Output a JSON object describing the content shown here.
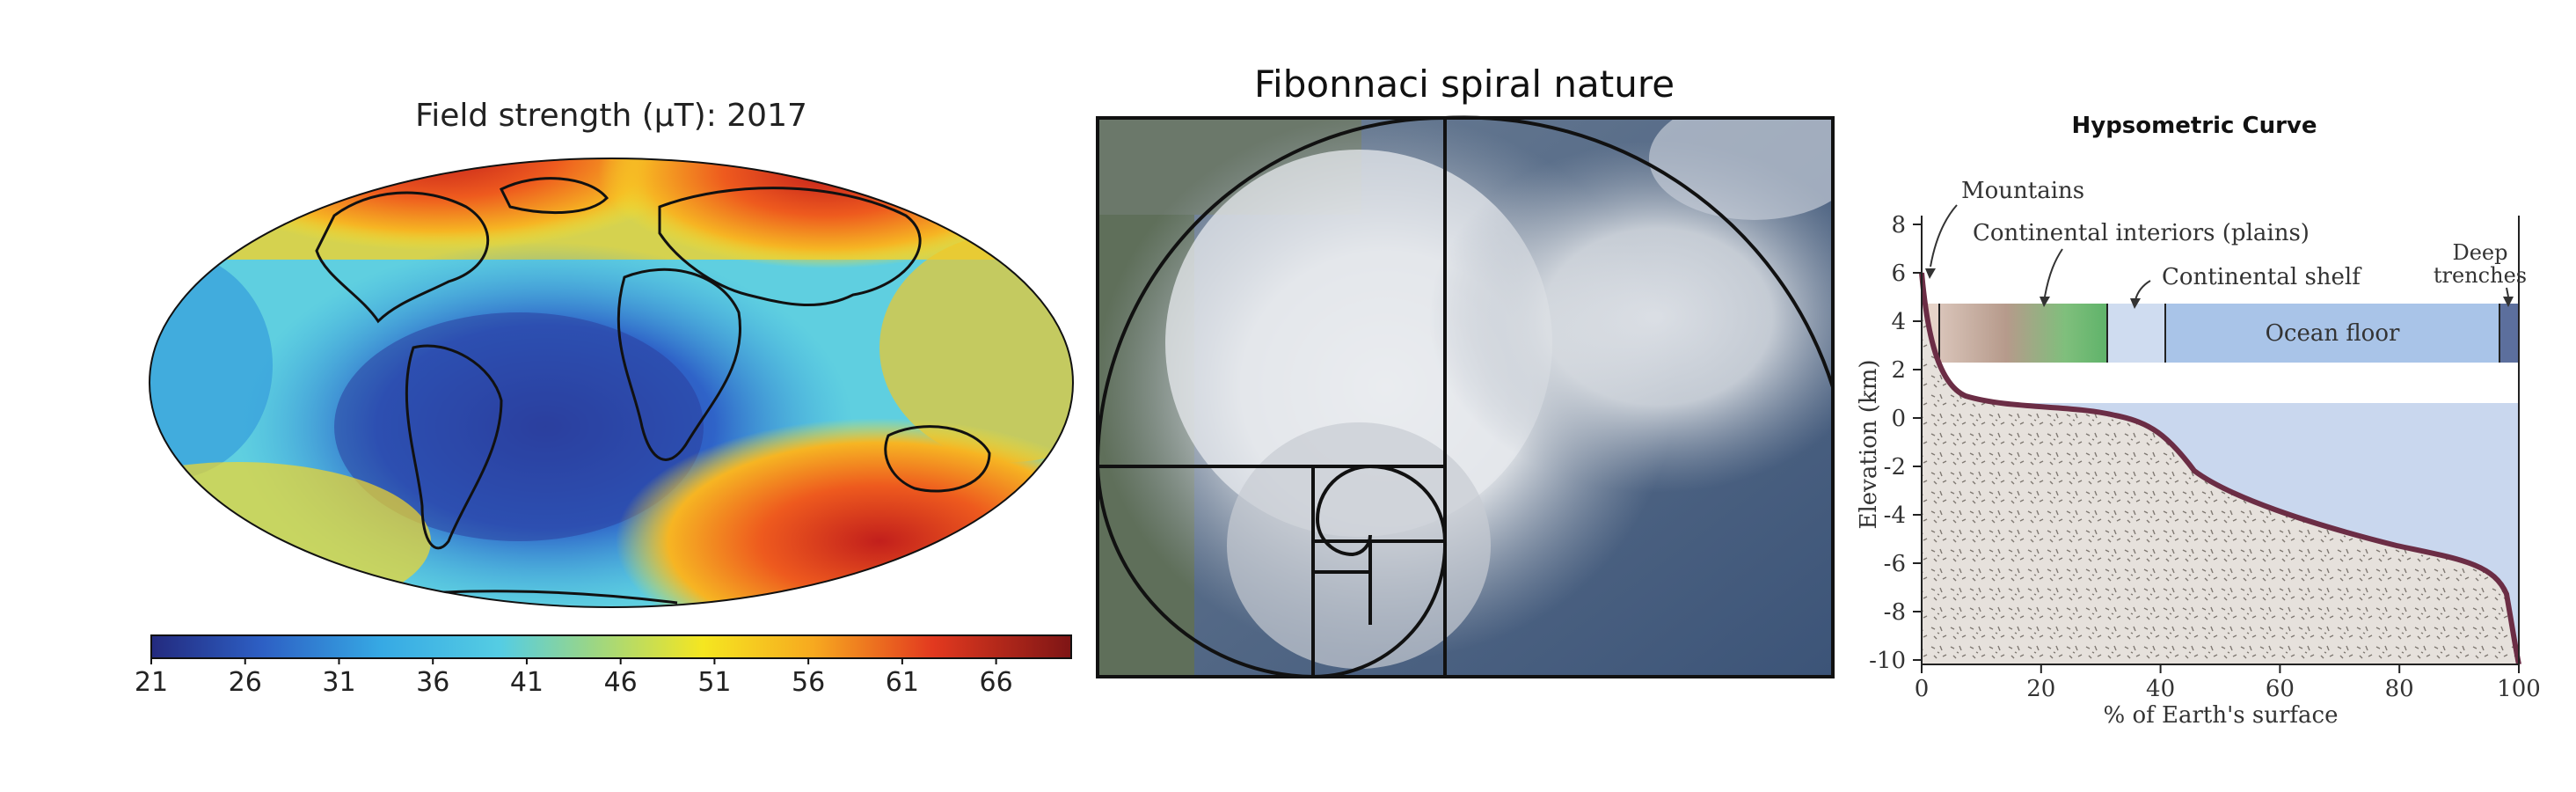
{
  "panels": {
    "magnetic": {
      "title": "Field strength (μT): 2017",
      "colorbar_ticks": [
        "21",
        "26",
        "31",
        "36",
        "41",
        "46",
        "51",
        "56",
        "61",
        "66"
      ],
      "colors": [
        "#2b2f8f",
        "#2f6fd0",
        "#3fb7e6",
        "#8fd18a",
        "#f4e21c",
        "#f59a23",
        "#d93420",
        "#8a1a1a"
      ]
    },
    "fibonacci": {
      "title": "Fibonnaci spiral nature"
    },
    "hypsometric": {
      "title": "Hypsometric Curve",
      "labels": {
        "mountains": "Mountains",
        "plains": "Continental interiors (plains)",
        "shelf": "Continental shelf",
        "deep1": "Deep",
        "deep2": "trenches",
        "ocean_floor": "Ocean floor"
      },
      "ylabel": "Elevation (km)",
      "xlabel": "% of Earth's surface",
      "yticks": [
        "8",
        "6",
        "4",
        "2",
        "0",
        "-2",
        "-4",
        "-6",
        "-8",
        "-10"
      ],
      "xticks": [
        "0",
        "20",
        "40",
        "60",
        "80",
        "100"
      ],
      "colors": {
        "curve": "#6b2d45",
        "ocean": "#c9d7ee",
        "land": "#e6e1dc"
      }
    }
  }
}
